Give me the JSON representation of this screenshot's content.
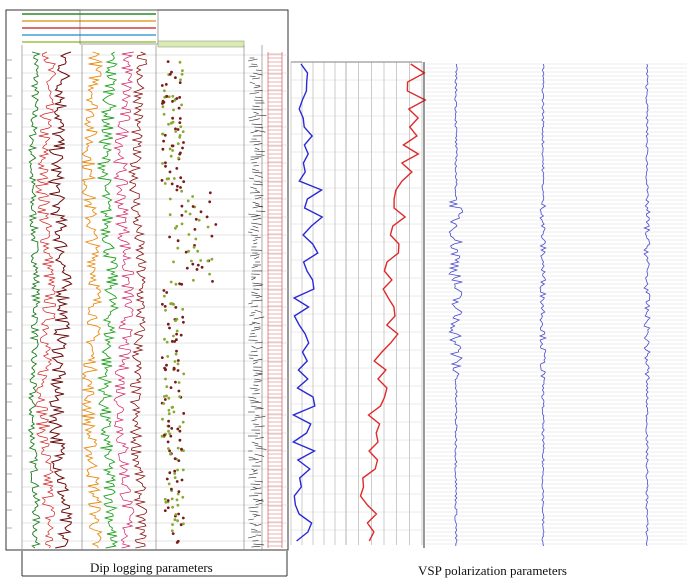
{
  "captions": {
    "left": "Dip logging parameters",
    "right": "VSP polarization parameters"
  },
  "panels": {
    "dip_logging": {
      "curve_colors": [
        "#1a7a1a",
        "#d42020",
        "#6a0a0a",
        "#e88a10",
        "#20a020",
        "#d42060",
        "#8a1010"
      ],
      "scatter_colors": [
        "#8aa830",
        "#7a1a1a"
      ],
      "tadpole_color": "#222222",
      "depth_track_color": "#c84040",
      "header_colors": [
        "#2a8a2a",
        "#e0a030",
        "#d04040",
        "#40a0d0",
        "#a0c040"
      ]
    },
    "vsp_polarization": {
      "curve_left_color": "#2a2ad8",
      "curve_right_color": "#e02a2a",
      "trace_color": "#4a4ad0",
      "grid_color": "#555555"
    }
  }
}
